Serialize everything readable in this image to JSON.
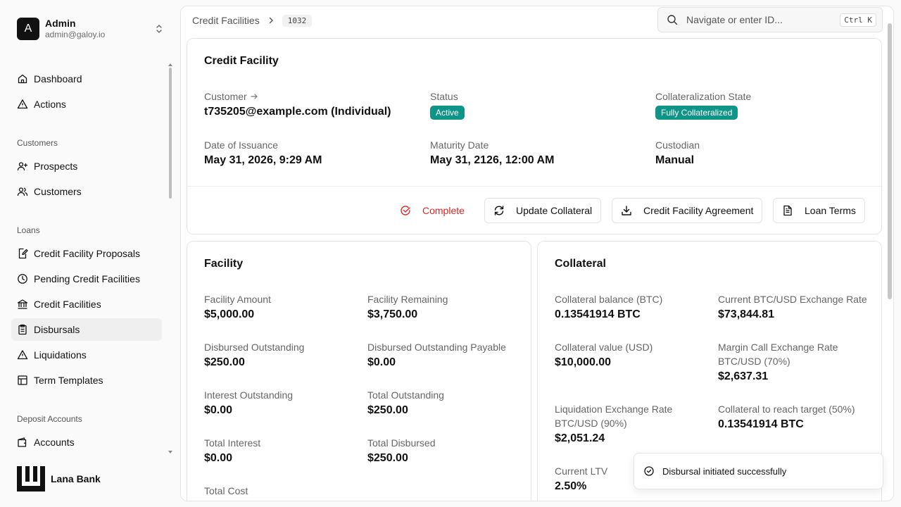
{
  "user": {
    "initial": "A",
    "name": "Admin",
    "email": "admin@galoy.io"
  },
  "nav": {
    "dashboard": "Dashboard",
    "actions": "Actions",
    "group_customers": "Customers",
    "prospects": "Prospects",
    "customers": "Customers",
    "group_loans": "Loans",
    "proposals": "Credit Facility Proposals",
    "pending": "Pending Credit Facilities",
    "facilities": "Credit Facilities",
    "disbursals": "Disbursals",
    "liquidations": "Liquidations",
    "term_templates": "Term Templates",
    "group_deposits": "Deposit Accounts",
    "accounts": "Accounts"
  },
  "brand": {
    "name": "Lana Bank"
  },
  "breadcrumb": {
    "section": "Credit Facilities",
    "id": "1032"
  },
  "search": {
    "placeholder": "Navigate or enter ID...",
    "shortcut": "Ctrl K"
  },
  "overview": {
    "title": "Credit Facility",
    "customer_label": "Customer",
    "customer_value": "t735205@example.com (Individual)",
    "status_label": "Status",
    "status_value": "Active",
    "collat_state_label": "Collateralization State",
    "collat_state_value": "Fully Collateralized",
    "issuance_label": "Date of Issuance",
    "issuance_value": "May 31, 2026, 9:29 AM",
    "maturity_label": "Maturity Date",
    "maturity_value": "May 31, 2126, 12:00 AM",
    "custodian_label": "Custodian",
    "custodian_value": "Manual",
    "actions": {
      "complete": "Complete",
      "update_collateral": "Update Collateral",
      "agreement": "Credit Facility Agreement",
      "loan_terms": "Loan Terms"
    }
  },
  "facility": {
    "title": "Facility",
    "amount_label": "Facility Amount",
    "amount_value": "$5,000.00",
    "remaining_label": "Facility Remaining",
    "remaining_value": "$3,750.00",
    "disbursed_out_label": "Disbursed Outstanding",
    "disbursed_out_value": "$250.00",
    "disbursed_payable_label": "Disbursed Outstanding Payable",
    "disbursed_payable_value": "$0.00",
    "interest_out_label": "Interest Outstanding",
    "interest_out_value": "$0.00",
    "total_out_label": "Total Outstanding",
    "total_out_value": "$250.00",
    "total_interest_label": "Total Interest",
    "total_interest_value": "$0.00",
    "total_disbursed_label": "Total Disbursed",
    "total_disbursed_value": "$250.00",
    "total_cost_label": "Total Cost"
  },
  "collateral": {
    "title": "Collateral",
    "balance_label": "Collateral balance (BTC)",
    "balance_value": "0.13541914 BTC",
    "rate_label": "Current BTC/USD Exchange Rate",
    "rate_value": "$73,844.81",
    "value_label": "Collateral value (USD)",
    "value_value": "$10,000.00",
    "margin_label_1": "Margin Call Exchange Rate",
    "margin_label_2": "BTC/USD (70%)",
    "margin_value": "$2,637.31",
    "liq_label_1": "Liquidation Exchange Rate",
    "liq_label_2": "BTC/USD (90%)",
    "liq_value": "$2,051.24",
    "target_label": "Collateral to reach target (50%)",
    "target_value": "0.13541914 BTC",
    "ltv_label": "Current LTV",
    "ltv_value": "2.50%"
  },
  "toast": {
    "message": "Disbursal initiated successfully"
  },
  "colors": {
    "active_badge": "#0f9488",
    "complete_red": "#dc2626"
  }
}
